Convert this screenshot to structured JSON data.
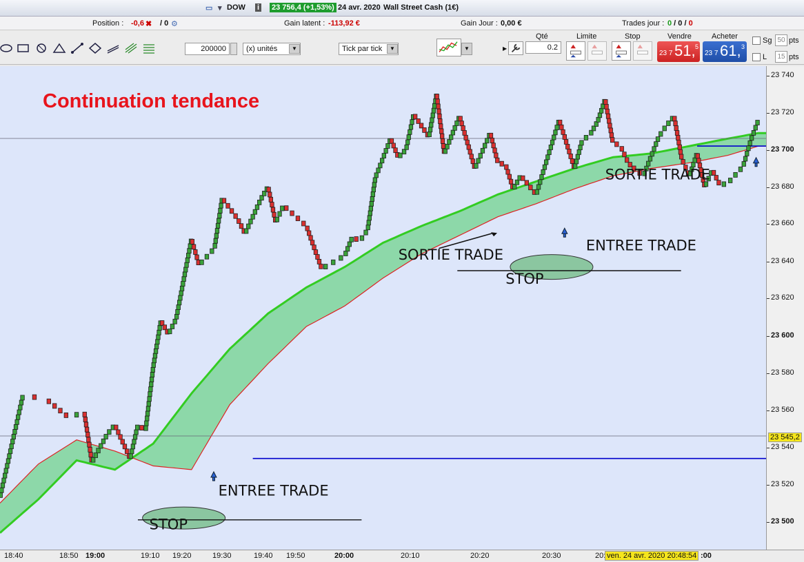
{
  "topbar": {
    "instrument": "DOW",
    "quote": "23 756,4 (+1,53%)",
    "date": "24 avr. 2020",
    "market": "Wall Street Cash (1€)"
  },
  "infobar": {
    "position_label": "Position :",
    "position_value": "-0,6",
    "position_extra": "/ 0",
    "latent_label": "Gain latent :",
    "latent_value": "-113,92 €",
    "day_label": "Gain Jour :",
    "day_value": "0,00 €",
    "trades_label": "Trades jour :",
    "trades_a": "0",
    "trades_b": "0",
    "trades_c": "0"
  },
  "toolbar": {
    "quantity": "200000",
    "units": "(x) unités",
    "mode": "Tick par tick",
    "qty_label": "Qté",
    "qty_value": "0.2",
    "limit_label": "Limite",
    "stop_label": "Stop",
    "sell_label": "Vendre",
    "buy_label": "Acheter",
    "sell_small": "23 7",
    "sell_big": "51,",
    "sell_sup": "5",
    "buy_small": "23 7",
    "buy_big": "61,",
    "buy_sup": "3",
    "sg_label": "Sg",
    "sg_value": "50",
    "l_label": "L",
    "l_value": "15",
    "pts": "pts"
  },
  "chart_data": {
    "type": "line",
    "title": "Continuation tendance",
    "ylim": [
      23485,
      23745
    ],
    "y_ticks": [
      "23 740",
      "23 720",
      "23 700",
      "23 680",
      "23 660",
      "23 640",
      "23 620",
      "23 600",
      "23 580",
      "23 560",
      "23 540",
      "23 520",
      "23 500"
    ],
    "y_tick_values": [
      23740,
      23720,
      23700,
      23680,
      23660,
      23640,
      23620,
      23600,
      23580,
      23560,
      23540,
      23520,
      23500
    ],
    "x_ticks": [
      "18:40",
      "18:50",
      "19:00",
      "19:10",
      "19:20",
      "19:30",
      "19:40",
      "19:50",
      "20:00",
      "20:10",
      "20:20",
      "20:30",
      "20:",
      "",
      "",
      ":00"
    ],
    "current_price_label": "23 545,2",
    "crosshair_label": "ven. 24 avr. 2020 20:48:54",
    "colors": {
      "up": "#3aa23a",
      "down": "#d93030",
      "band": "#7fd59a",
      "slow": "#33cc22",
      "fast": "#dd2222",
      "level": "#0000cc"
    },
    "series": [
      {
        "x": [
          0,
          3,
          6,
          9,
          11,
          12,
          14,
          15,
          17,
          18,
          19,
          20,
          21,
          22,
          23,
          25,
          26,
          28,
          29,
          31,
          32,
          34,
          35,
          36,
          37,
          40,
          42,
          45,
          46,
          47,
          48,
          49,
          51,
          52,
          53,
          54,
          56,
          57,
          58,
          60,
          62,
          64,
          65,
          66,
          67,
          68,
          70,
          73,
          75,
          76,
          77,
          78,
          79,
          80,
          81,
          82,
          83,
          84,
          86,
          87,
          88,
          89,
          90,
          91,
          92,
          93,
          94,
          95,
          97,
          98,
          99
        ],
        "values": [
          23513,
          23568,
          23566,
          23556,
          23559,
          23532,
          23547,
          23552,
          23534,
          23552,
          23549,
          23583,
          23608,
          23601,
          23609,
          23652,
          23638,
          23647,
          23674,
          23663,
          23655,
          23673,
          23680,
          23661,
          23670,
          23659,
          23636,
          23643,
          23653,
          23651,
          23657,
          23685,
          23706,
          23696,
          23700,
          23719,
          23707,
          23730,
          23698,
          23718,
          23690,
          23709,
          23693,
          23692,
          23679,
          23686,
          23676,
          23716,
          23690,
          23705,
          23708,
          23715,
          23727,
          23704,
          23702,
          23693,
          23689,
          23686,
          23707,
          23713,
          23718,
          23695,
          23686,
          23698,
          23680,
          23689,
          23681,
          23682,
          23691,
          23705,
          23716
        ]
      },
      {
        "name": "",
        "x": [
          0,
          5,
          10,
          15,
          20,
          25,
          30,
          35,
          40,
          45,
          50,
          55,
          60,
          65,
          70,
          75,
          80,
          85,
          90,
          95,
          99
        ],
        "values": [
          23494,
          23512,
          23533,
          23528,
          23542,
          23569,
          23593,
          23612,
          23626,
          23637,
          23650,
          23659,
          23667,
          23676,
          23683,
          23690,
          23696,
          23698,
          23702,
          23706,
          23709
        ]
      },
      {
        "name": "",
        "x": [
          0,
          5,
          10,
          15,
          20,
          25,
          30,
          35,
          40,
          45,
          50,
          55,
          60,
          65,
          70,
          75,
          80,
          85,
          90,
          95,
          99
        ],
        "values": [
          23510,
          23531,
          23544,
          23538,
          23530,
          23528,
          23563,
          23585,
          23605,
          23616,
          23631,
          23644,
          23654,
          23664,
          23671,
          23679,
          23686,
          23690,
          23693,
          23697,
          23702
        ]
      }
    ],
    "levels": [
      {
        "y": 23534,
        "x0": 33,
        "x1": 100
      },
      {
        "y": 23702,
        "x0": 91,
        "x1": 100
      }
    ]
  },
  "annotations": [
    {
      "text": "ENTREE TRADE",
      "x": 28.5,
      "y": 23514
    },
    {
      "text": "STOP",
      "x": 19.5,
      "y": 23496
    },
    {
      "text": "SORTIE TRADE",
      "x": 52,
      "y": 23641
    },
    {
      "text": "ENTREE TRADE",
      "x": 76.5,
      "y": 23646
    },
    {
      "text": "STOP",
      "x": 66,
      "y": 23628
    },
    {
      "text": "SORTIE TRADE",
      "x": 79,
      "y": 23684
    }
  ]
}
